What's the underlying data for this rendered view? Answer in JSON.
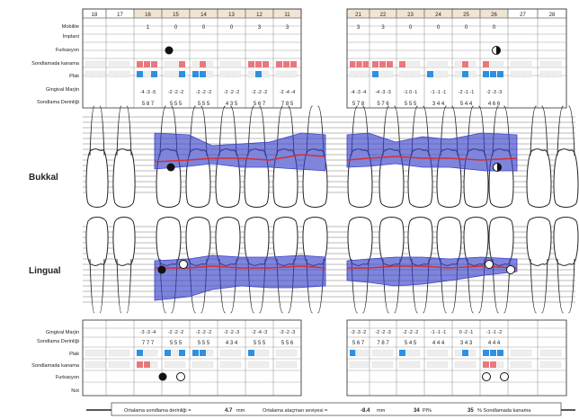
{
  "teeth_upper_left": [
    "18",
    "17",
    "16",
    "15",
    "14",
    "13",
    "12",
    "11"
  ],
  "teeth_upper_right": [
    "21",
    "22",
    "23",
    "24",
    "25",
    "26",
    "27",
    "28"
  ],
  "upper_table": {
    "rows": [
      "Mobilite",
      "İmplant",
      "Furkasyon",
      "Sondlamada kanama",
      "Plak",
      "Gingival Marjin",
      "Sondlama Derinliği"
    ],
    "mobility_left": [
      "",
      "",
      "1",
      "0",
      "0",
      "0",
      "3",
      "3"
    ],
    "mobility_right": [
      "3",
      "3",
      "0",
      "0",
      "0",
      "0",
      "",
      ""
    ],
    "margin_left": [
      "",
      "",
      "-4 -3 -5",
      "-2 -2 -2",
      "-2 -2 -2",
      "-2 -2 -2",
      "-2 -2 -2",
      "-2 -4 -4"
    ],
    "margin_right": [
      "-4 -3 -4",
      "-4 -3 -3",
      "-1 0 -1",
      "-1 -1 -1",
      "-2 -1 -1",
      "-2 -3 -3",
      "",
      ""
    ],
    "depth_left": [
      "",
      "",
      "5 8 7",
      "5 5 5",
      "5 5 5",
      "4 3 5",
      "5 6 7",
      "7 8 5"
    ],
    "depth_right": [
      "5 7 8",
      "5 7 6",
      "5 5 5",
      "3 4 4",
      "5 4 4",
      "4 6 6",
      "",
      ""
    ]
  },
  "lower_table": {
    "rows": [
      "Gingival Marjin",
      "Sondlama Derinliği",
      "Plak",
      "Sondlamada kanama",
      "Furkasyon",
      "Not"
    ],
    "margin_left": [
      "",
      "",
      "-3 -3 -4",
      "-2 -2 -2",
      "-2 -2 -2",
      "-2 -2 -3",
      "-2 -4 -3",
      "-3 -2 -3"
    ],
    "margin_right": [
      "-3 -3 -2",
      "-2 -2 -3",
      "-2 -2 -2",
      "-1 -1 -1",
      "0 -2 -1",
      "-1 -1 -2",
      "",
      ""
    ],
    "depth_left": [
      "",
      "",
      "7 7 7",
      "5 5 5",
      "5 5 5",
      "4 3 4",
      "5 5 5",
      "5 5 6"
    ],
    "depth_right": [
      "5 6 7",
      "7 8 7",
      "5 4 5",
      "4 4 4",
      "3 4 3",
      "4 4 4",
      "",
      ""
    ]
  },
  "view_labels": {
    "buccal": "Bukkal",
    "lingual": "Lingual"
  },
  "summary": {
    "depth_label": "Ortalama sondlama derinliği =",
    "depth_value": "4.7",
    "depth_unit": "mm",
    "attachment_label": "Ortalama ataçman seviyesi =",
    "attachment_value": "-8.4",
    "attachment_unit": "mm",
    "plaque_value": "34",
    "plaque_label": "Pl%",
    "bleeding_value": "35",
    "bleeding_label": "% Sondlamada kanama"
  },
  "colors": {
    "bleeding": "#e8787e",
    "plaque": "#2f8fe0",
    "pocket": "#3b43c8",
    "margin": "#d23030"
  }
}
